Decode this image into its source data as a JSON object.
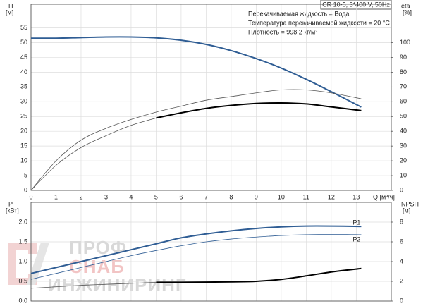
{
  "chart_data": [
    {
      "type": "line",
      "info_box": "CR 10-5, 3*400 V, 50Hz",
      "annotations": [
        "Перекачиваемая жидкость = Вода",
        "Температура перекачиваемой жидкости = 20 °C",
        "Плотность = 998.2 кг/м³"
      ],
      "ylabel": "H",
      "ylabel_unit": "[м]",
      "y2label": "eta",
      "y2label_unit": "[%]",
      "xlabel": "Q [м³/ч]",
      "xlim": [
        0,
        14.4
      ],
      "xticks": [
        0,
        1,
        2,
        3,
        4,
        5,
        6,
        7,
        8,
        9,
        10,
        11,
        12,
        13
      ],
      "ylim": [
        0,
        63
      ],
      "yticks": [
        0,
        5,
        10,
        15,
        20,
        25,
        30,
        35,
        40,
        45,
        50,
        55
      ],
      "y2lim": [
        0,
        126
      ],
      "y2ticks": [
        0,
        10,
        20,
        30,
        40,
        50,
        60,
        70,
        80,
        90,
        100
      ],
      "grid": true,
      "x": [
        0,
        1,
        2,
        3,
        4,
        5,
        6,
        7,
        8,
        9,
        10,
        11,
        12,
        13.2
      ],
      "series": [
        {
          "color": "#2f5d94",
          "style": "thick",
          "axis": "y",
          "values": [
            51.5,
            51.5,
            51.7,
            51.9,
            51.9,
            51.6,
            50.8,
            49.4,
            47.3,
            44.6,
            41.4,
            37.6,
            33.4,
            28.2
          ]
        },
        {
          "color": "#555555",
          "style": "thin",
          "axis": "y2",
          "values": [
            0,
            20,
            34,
            42,
            48,
            53,
            57,
            61,
            63.5,
            66,
            68,
            68,
            66,
            62
          ]
        },
        {
          "color": "#555555",
          "style": "thin",
          "axis": "y2",
          "values": [
            0,
            17,
            29,
            37,
            44,
            49,
            null,
            null,
            null,
            null,
            null,
            null,
            null,
            null
          ]
        },
        {
          "color": "#000000",
          "style": "thick",
          "axis": "y2",
          "values": [
            null,
            null,
            null,
            null,
            null,
            49,
            52.5,
            55.5,
            57.5,
            58.8,
            59.2,
            58.5,
            56.5,
            54
          ]
        }
      ]
    },
    {
      "type": "line",
      "ylabel": "P",
      "ylabel_unit": "[кВт]",
      "y2label": "NPSH",
      "y2label_unit": "[м]",
      "xlim": [
        0,
        14.4
      ],
      "xticks": [
        0,
        1,
        2,
        3,
        4,
        5,
        6,
        7,
        8,
        9,
        10,
        11,
        12,
        13
      ],
      "ylim": [
        0,
        2.5
      ],
      "yticks": [
        {
          "value": 0,
          "label": "0.0"
        },
        0.5,
        {
          "value": 1,
          "label": "1.0"
        },
        1.5,
        {
          "value": 2,
          "label": "2.0"
        }
      ],
      "y2lim": [
        0,
        10
      ],
      "y2ticks": [
        0,
        2,
        4,
        6,
        8
      ],
      "grid": true,
      "x": [
        0,
        1,
        2,
        3,
        4,
        5,
        6,
        7,
        8,
        9,
        10,
        11,
        12,
        13.2
      ],
      "series": [
        {
          "name": "P1",
          "color": "#2f5d94",
          "style": "thick",
          "axis": "y",
          "values": [
            0.7,
            0.85,
            1.0,
            1.15,
            1.3,
            1.45,
            1.6,
            1.7,
            1.78,
            1.84,
            1.88,
            1.9,
            1.9,
            1.89
          ]
        },
        {
          "name": "P2",
          "color": "#2f5d94",
          "style": "thin",
          "axis": "y",
          "values": [
            0.55,
            0.7,
            0.85,
            1.0,
            1.15,
            1.28,
            1.4,
            1.5,
            1.57,
            1.62,
            1.66,
            1.68,
            1.69,
            1.68
          ]
        },
        {
          "color": "#555555",
          "style": "thin",
          "axis": "y2",
          "values": [
            1.3,
            1.45,
            1.6,
            1.7,
            1.8,
            1.9,
            null,
            null,
            null,
            null,
            null,
            null,
            null,
            null
          ]
        },
        {
          "color": "#000000",
          "style": "thick",
          "axis": "y2",
          "values": [
            null,
            null,
            null,
            null,
            null,
            1.9,
            1.9,
            1.92,
            1.95,
            2.0,
            2.2,
            2.55,
            2.95,
            3.3
          ]
        }
      ]
    }
  ],
  "watermark": [
    "ПРОФ",
    "СНАБ",
    "ИНЖИНИРИНГ"
  ]
}
